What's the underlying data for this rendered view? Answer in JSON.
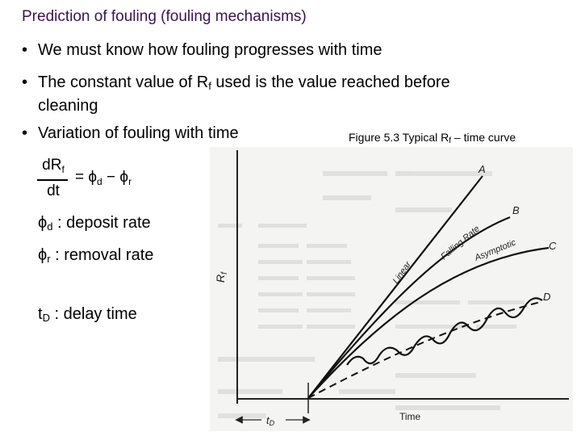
{
  "slide": {
    "title": "Prediction of fouling (fouling mechanisms)",
    "bullets": [
      {
        "marker": "•",
        "text": "We must know how fouling progresses with time"
      },
      {
        "marker": "•",
        "text_a": "The constant value of R",
        "sub": "f",
        "text_b": " used is the value reached before",
        "text_c": "cleaning"
      },
      {
        "marker": "•",
        "text": "Variation of fouling with time"
      }
    ]
  },
  "figure": {
    "caption_a": "Figure 5.3 Typical R",
    "caption_sub": "f",
    "caption_b": " – time curve",
    "y_axis_label": "R",
    "y_axis_sub": "f",
    "x_axis_label": "Time",
    "delay_label": "t",
    "delay_sub": "D",
    "curves": [
      {
        "id": "A",
        "label": "A",
        "name": "Linear"
      },
      {
        "id": "B",
        "label": "B",
        "name": "Falling Rate"
      },
      {
        "id": "C",
        "label": "C",
        "name": "Asymptotic"
      },
      {
        "id": "D",
        "label": "D",
        "name": ""
      }
    ]
  },
  "equation": {
    "numerator": "dR",
    "numerator_sub": "f",
    "denominator": "dt",
    "equals": "=",
    "phi": "ϕ",
    "phi_d_sub": "d",
    "minus": "−",
    "phi_r_sub": "r"
  },
  "definitions": [
    {
      "symbol": "ϕ",
      "sub": "d",
      "text": " : deposit rate"
    },
    {
      "symbol": "ϕ",
      "sub": "r",
      "text": " : removal rate"
    },
    {
      "symbol": "t",
      "sub": "D",
      "text": " : delay time"
    }
  ]
}
